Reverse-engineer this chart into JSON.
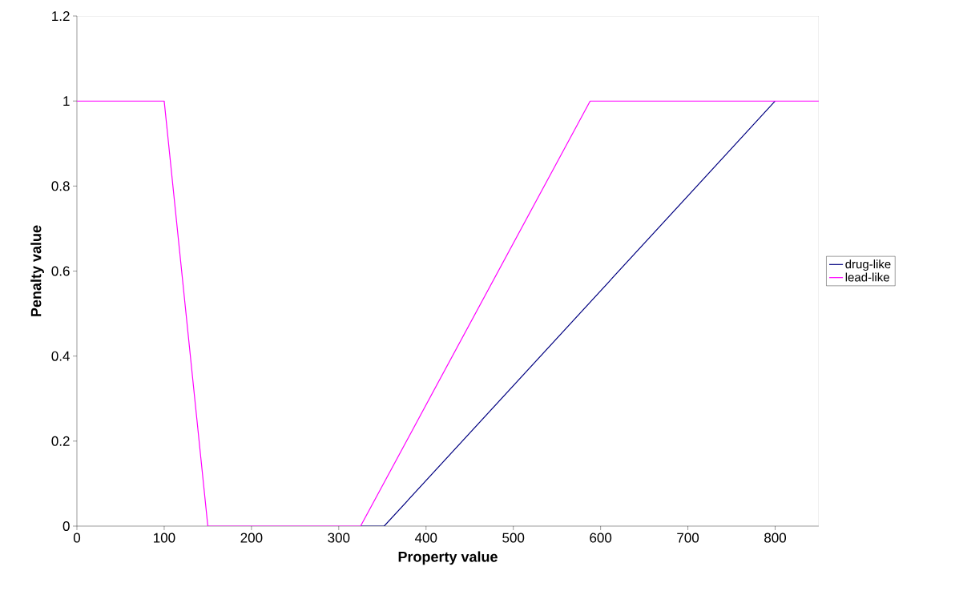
{
  "chart_data": {
    "type": "line",
    "xlabel": "Property value",
    "ylabel": "Penalty value",
    "xlim": [
      0,
      850
    ],
    "ylim": [
      0,
      1.2
    ],
    "xticks": [
      0,
      100,
      200,
      300,
      400,
      500,
      600,
      700,
      800
    ],
    "yticks": [
      0,
      {
        "value": 0.2,
        "label": "0.2"
      },
      {
        "value": 0.4,
        "label": "0.4"
      },
      {
        "value": 0.6,
        "label": "0.6"
      },
      {
        "value": 0.8,
        "label": "0.8"
      },
      1,
      {
        "value": 1.2,
        "label": "1.2"
      }
    ],
    "legend": "right",
    "marker": "none",
    "line_style": "solid",
    "series": [
      {
        "name": "drug-like",
        "color": "#000080",
        "x": [
          325,
          352,
          800
        ],
        "values": [
          0,
          0,
          1
        ]
      },
      {
        "name": "lead-like",
        "color": "#ff00ff",
        "x": [
          0,
          100,
          150,
          325,
          588,
          850
        ],
        "values": [
          1,
          1,
          0,
          0,
          1,
          1
        ]
      }
    ]
  }
}
